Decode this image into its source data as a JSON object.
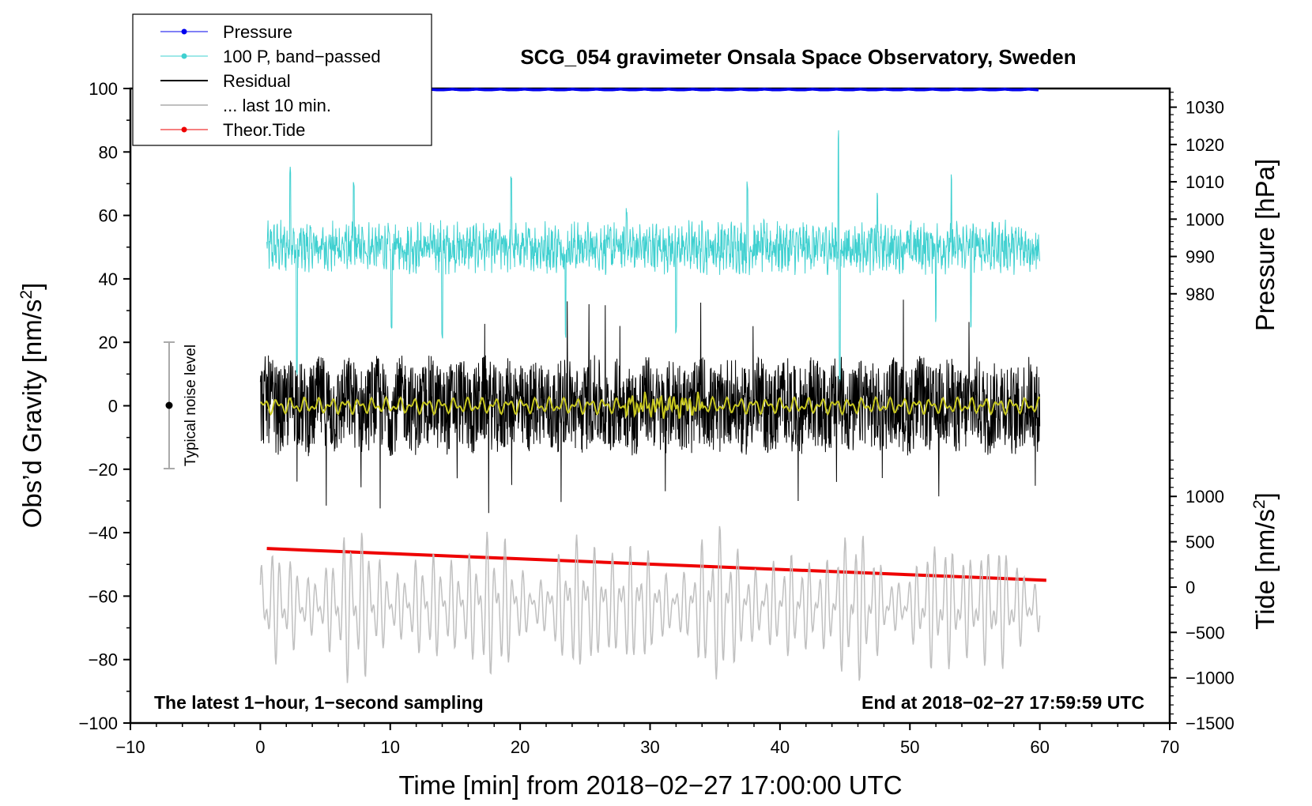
{
  "chart_data": {
    "type": "line",
    "title": "SCG_054 gravimeter Onsala Space Observatory, Sweden",
    "xlabel": "Time [min] from 2018−02−27 17:00:00 UTC",
    "ylabel_main": "Obs’d Gravity [nm/s",
    "ylabel_main_sup": "2",
    "ylabel_main_close": "]",
    "ylabel_pressure": "Pressure [hPa]",
    "ylabel_tide": "Tide [nm/s",
    "ylabel_tide_sup": "2",
    "ylabel_tide_close": "]",
    "xlim": [
      -10,
      70
    ],
    "ylim": [
      -100,
      100
    ],
    "xticks": [
      -10,
      0,
      10,
      20,
      30,
      40,
      50,
      60,
      70
    ],
    "xtick_labels": [
      "−10",
      "0",
      "10",
      "20",
      "30",
      "40",
      "50",
      "60",
      "70"
    ],
    "yticks": [
      -100,
      -80,
      -60,
      -40,
      -20,
      0,
      20,
      40,
      60,
      80,
      100
    ],
    "ytick_labels": [
      "−100",
      "−80",
      "−60",
      "−40",
      "−20",
      "0",
      "20",
      "40",
      "60",
      "80",
      "100"
    ],
    "pressure_axis": {
      "ticks": [
        980,
        990,
        1000,
        1010,
        1020,
        1030
      ],
      "labels": [
        "980",
        "990",
        "1000",
        "1010",
        "1020",
        "1030"
      ],
      "value_at_gravity_0": 950,
      "value_at_gravity_100": 1035
    },
    "tide_axis": {
      "ticks": [
        -1500,
        -1000,
        -500,
        0,
        500,
        1000
      ],
      "labels": [
        "−1500",
        "−1000",
        "−500",
        "0",
        "500",
        "1000"
      ],
      "value_at_gravity_min100": -1500,
      "value_at_gravity_0": 2000
    },
    "legend": [
      {
        "label": "Pressure",
        "color": "#0000ee",
        "marker": true
      },
      {
        "label": "100 P, band−passed",
        "color": "#3fd0d0",
        "marker": true
      },
      {
        "label": "Residual",
        "color": "#000000",
        "marker": false
      },
      {
        "label": "... last 10 min.",
        "color": "#c0c0c0",
        "marker": false
      },
      {
        "label": "Theor.Tide",
        "color": "#ee0000",
        "marker": true
      }
    ],
    "series": [
      {
        "name": "Pressure",
        "color": "#0000ee",
        "x_range": [
          0,
          60
        ],
        "approx_value_hPa": 1034.9,
        "gravity_equiv": 99.8
      },
      {
        "name": "100 P, band-passed",
        "color": "#3fd0d0",
        "x_range": [
          0.5,
          60
        ],
        "offset": 50,
        "amplitude_range": [
          30,
          82
        ]
      },
      {
        "name": "Residual",
        "color": "#000000",
        "x_range": [
          0,
          60
        ],
        "offset": 0,
        "amplitude_range": [
          -35,
          35
        ]
      },
      {
        "name": "Residual smoothed",
        "color": "#c8c820",
        "x_range": [
          0,
          60
        ],
        "offset": 0
      },
      {
        "name": "... last 10 min.",
        "color": "#c0c0c0",
        "x_range": [
          0,
          60
        ],
        "offset": -63,
        "amplitude_range": [
          -97,
          -32
        ]
      },
      {
        "name": "Theor.Tide",
        "color": "#ee0000",
        "x": [
          0.5,
          60.5
        ],
        "y": [
          -45,
          -55
        ]
      }
    ],
    "noise_bar": {
      "label": "Typical noise level",
      "x": -7,
      "y_center": 0,
      "y_range": [
        -20,
        20
      ]
    },
    "annotation_left": "The latest 1−hour, 1−second sampling",
    "annotation_right": "End at 2018−02−27 17:59:59 UTC"
  }
}
